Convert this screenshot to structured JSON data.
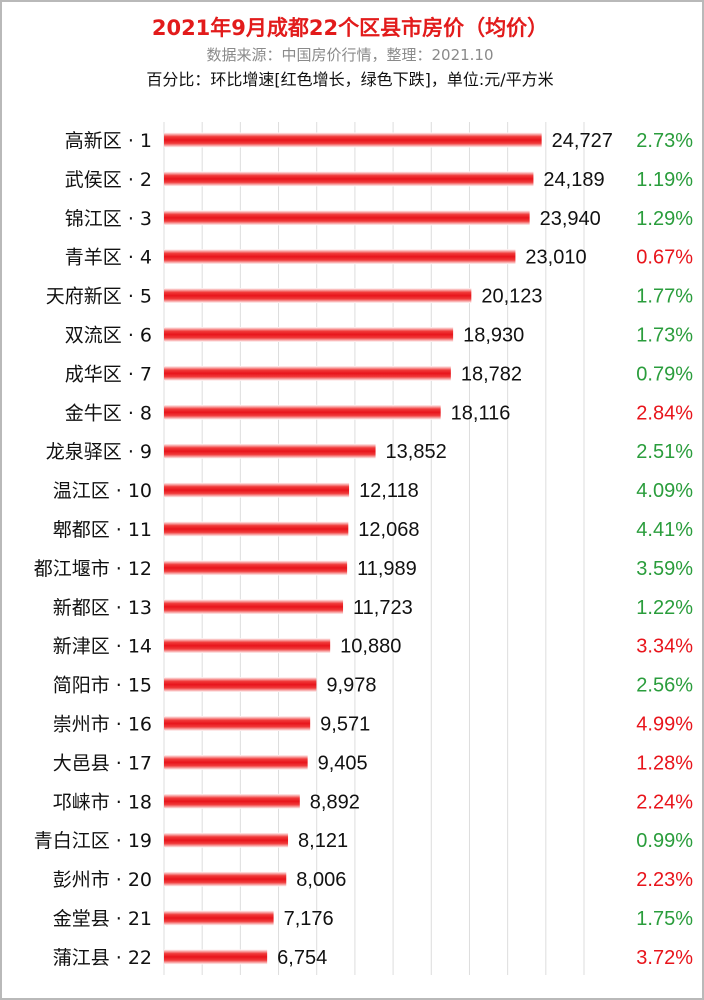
{
  "header": {
    "title": "2021年9月成都22个区县市房价（均价）",
    "source": "数据来源：中国房价行情，整理：2021.10",
    "note": "百分比：环比增速[红色增长，绿色下跌]，单位:元/平方米"
  },
  "colors": {
    "bar": "#e8141b",
    "increase": "#e8141b",
    "decrease": "#2a9d3c",
    "grid": "#dddddd"
  },
  "chart_data": {
    "type": "bar",
    "orientation": "horizontal",
    "unit": "元/平方米",
    "xlim": [
      0,
      27500
    ],
    "grid": true,
    "categories": [
      "高新区 · 1",
      "武侯区 · 2",
      "锦江区 · 3",
      "青羊区 · 4",
      "天府新区 · 5",
      "双流区 · 6",
      "成华区 · 7",
      "金牛区 · 8",
      "龙泉驿区 · 9",
      "温江区 · 10",
      "郫都区 · 11",
      "都江堰市 · 12",
      "新都区 · 13",
      "新津区 · 14",
      "简阳市 · 15",
      "崇州市 · 16",
      "大邑县 · 17",
      "邛崃市 · 18",
      "青白江区 · 19",
      "彭州市 · 20",
      "金堂县 · 21",
      "蒲江县 · 22"
    ],
    "values": [
      24727,
      24189,
      23940,
      23010,
      20123,
      18930,
      18782,
      18116,
      13852,
      12118,
      12068,
      11989,
      11723,
      10880,
      9978,
      9571,
      9405,
      8892,
      8121,
      8006,
      7176,
      6754
    ],
    "value_labels": [
      "24,727",
      "24,189",
      "23,940",
      "23,010",
      "20,123",
      "18,930",
      "18,782",
      "18,116",
      "13,852",
      "12,118",
      "12,068",
      "11,989",
      "11,723",
      "10,880",
      "9,978",
      "9,571",
      "9,405",
      "8,892",
      "8,121",
      "8,006",
      "7,176",
      "6,754"
    ],
    "changes": [
      "2.73%",
      "1.19%",
      "1.29%",
      "0.67%",
      "1.77%",
      "1.73%",
      "0.79%",
      "2.84%",
      "2.51%",
      "4.09%",
      "4.41%",
      "3.59%",
      "1.22%",
      "3.34%",
      "2.56%",
      "4.99%",
      "1.28%",
      "2.24%",
      "0.99%",
      "2.23%",
      "1.75%",
      "3.72%"
    ],
    "change_colors": [
      "#2a9d3c",
      "#2a9d3c",
      "#2a9d3c",
      "#e8141b",
      "#2a9d3c",
      "#2a9d3c",
      "#2a9d3c",
      "#e8141b",
      "#2a9d3c",
      "#2a9d3c",
      "#2a9d3c",
      "#2a9d3c",
      "#2a9d3c",
      "#e8141b",
      "#2a9d3c",
      "#e8141b",
      "#e8141b",
      "#e8141b",
      "#2a9d3c",
      "#e8141b",
      "#2a9d3c",
      "#e8141b"
    ]
  }
}
